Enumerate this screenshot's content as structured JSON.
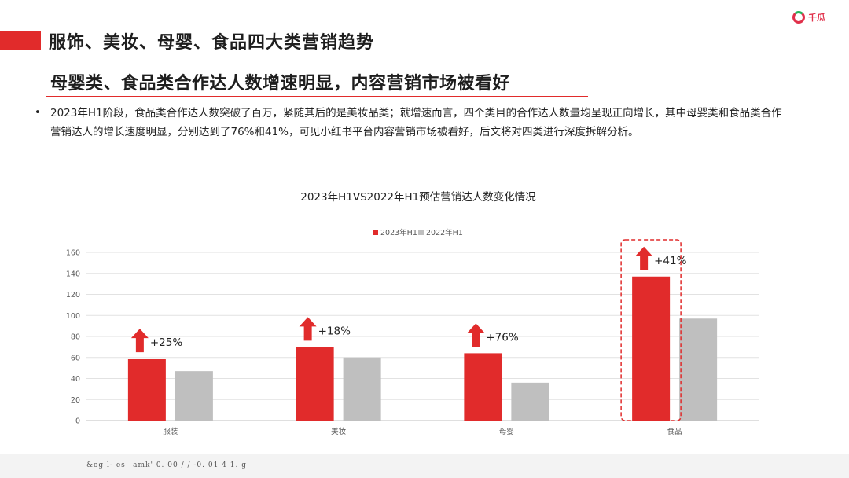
{
  "header": {
    "title": "服饰、美妆、母婴、食品四大类营销趋势",
    "logo_text": "千瓜"
  },
  "subtitle": "母婴类、食品类合作达人数增速明显，内容营销市场被看好",
  "bullet": "2023年H1阶段，食品类合作达人数突破了百万，紧随其后的是美妆品类；就增速而言，四个类目的合作达人数量均呈现正向增长，其中母婴类和食品类合作营销达人的增长速度明显，分别达到了76%和41%，可见小红书平台内容营销市场被看好，后文将对四类进行深度拆解分析。",
  "footer": "&og l- es_ amk'   0. 00  /   /   -0. 01   4   1.   g",
  "colors": {
    "accent": "#e12b2b",
    "series_2022": "#bfbfbf"
  },
  "chart_data": {
    "type": "bar",
    "title": "2023年H1VS2022年H1预估营销达人数变化情况",
    "categories": [
      "服装",
      "美妆",
      "母婴",
      "食品"
    ],
    "series": [
      {
        "name": "2023年H1",
        "color": "#e12b2b",
        "values": [
          59,
          70,
          64,
          137
        ]
      },
      {
        "name": "2022年H1",
        "color": "#bfbfbf",
        "values": [
          47,
          60,
          36,
          97
        ]
      }
    ],
    "growth_labels": [
      "+25%",
      "+18%",
      "+76%",
      "+41%"
    ],
    "highlight_category": "食品",
    "ylim": [
      0,
      160
    ],
    "yticks": [
      0,
      20,
      40,
      60,
      80,
      100,
      120,
      140,
      160
    ],
    "grid": true,
    "legend": "top-center",
    "xlabel": "",
    "ylabel": ""
  }
}
